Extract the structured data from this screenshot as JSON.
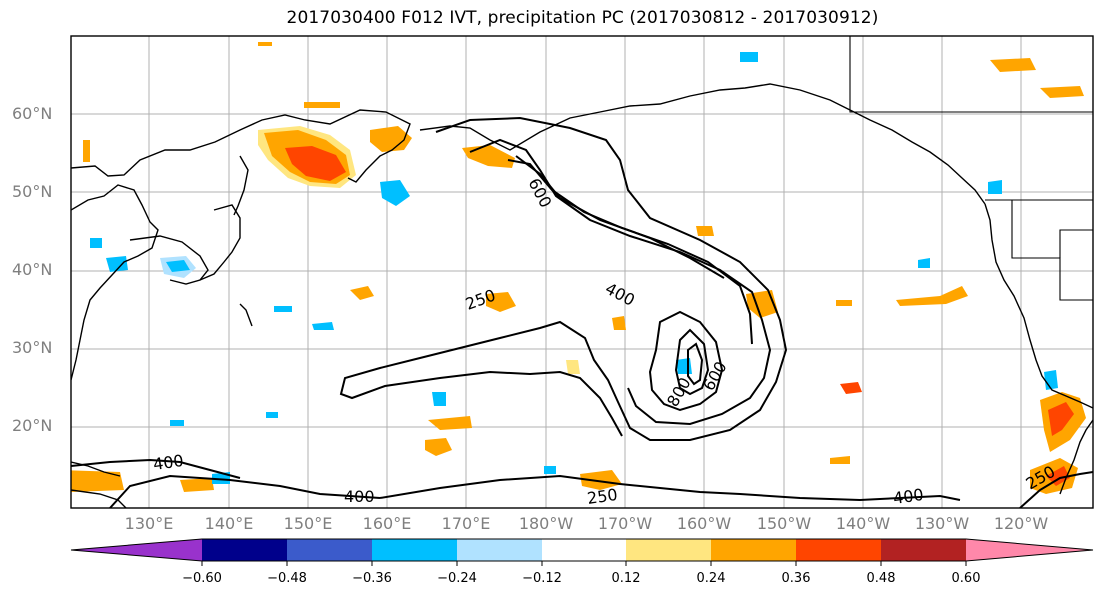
{
  "title": "2017030400 F012 IVT, precipitation PC (2017030812 - 2017030912)",
  "lat_labels": [
    "60°N",
    "50°N",
    "40°N",
    "30°N",
    "20°N"
  ],
  "lon_labels": [
    "130°E",
    "140°E",
    "150°E",
    "160°E",
    "170°E",
    "180°W",
    "170°W",
    "160°W",
    "150°W",
    "140°W",
    "130°W",
    "120°W"
  ],
  "contour_labels": [
    "600",
    "400",
    "250",
    "400",
    "400",
    "250",
    "400",
    "800",
    "600",
    "250"
  ],
  "colorbar": {
    "ticks": [
      "−0.60",
      "−0.48",
      "−0.36",
      "−0.24",
      "−0.12",
      "0.12",
      "0.24",
      "0.36",
      "0.48",
      "0.60"
    ],
    "colors": [
      "#9932cc",
      "#00008b",
      "#3b5bcb",
      "#00bfff",
      "#b0e2ff",
      "#ffffff",
      "#ffe680",
      "#ffa500",
      "#ff4500",
      "#b22222",
      "#ff88aa"
    ]
  }
}
